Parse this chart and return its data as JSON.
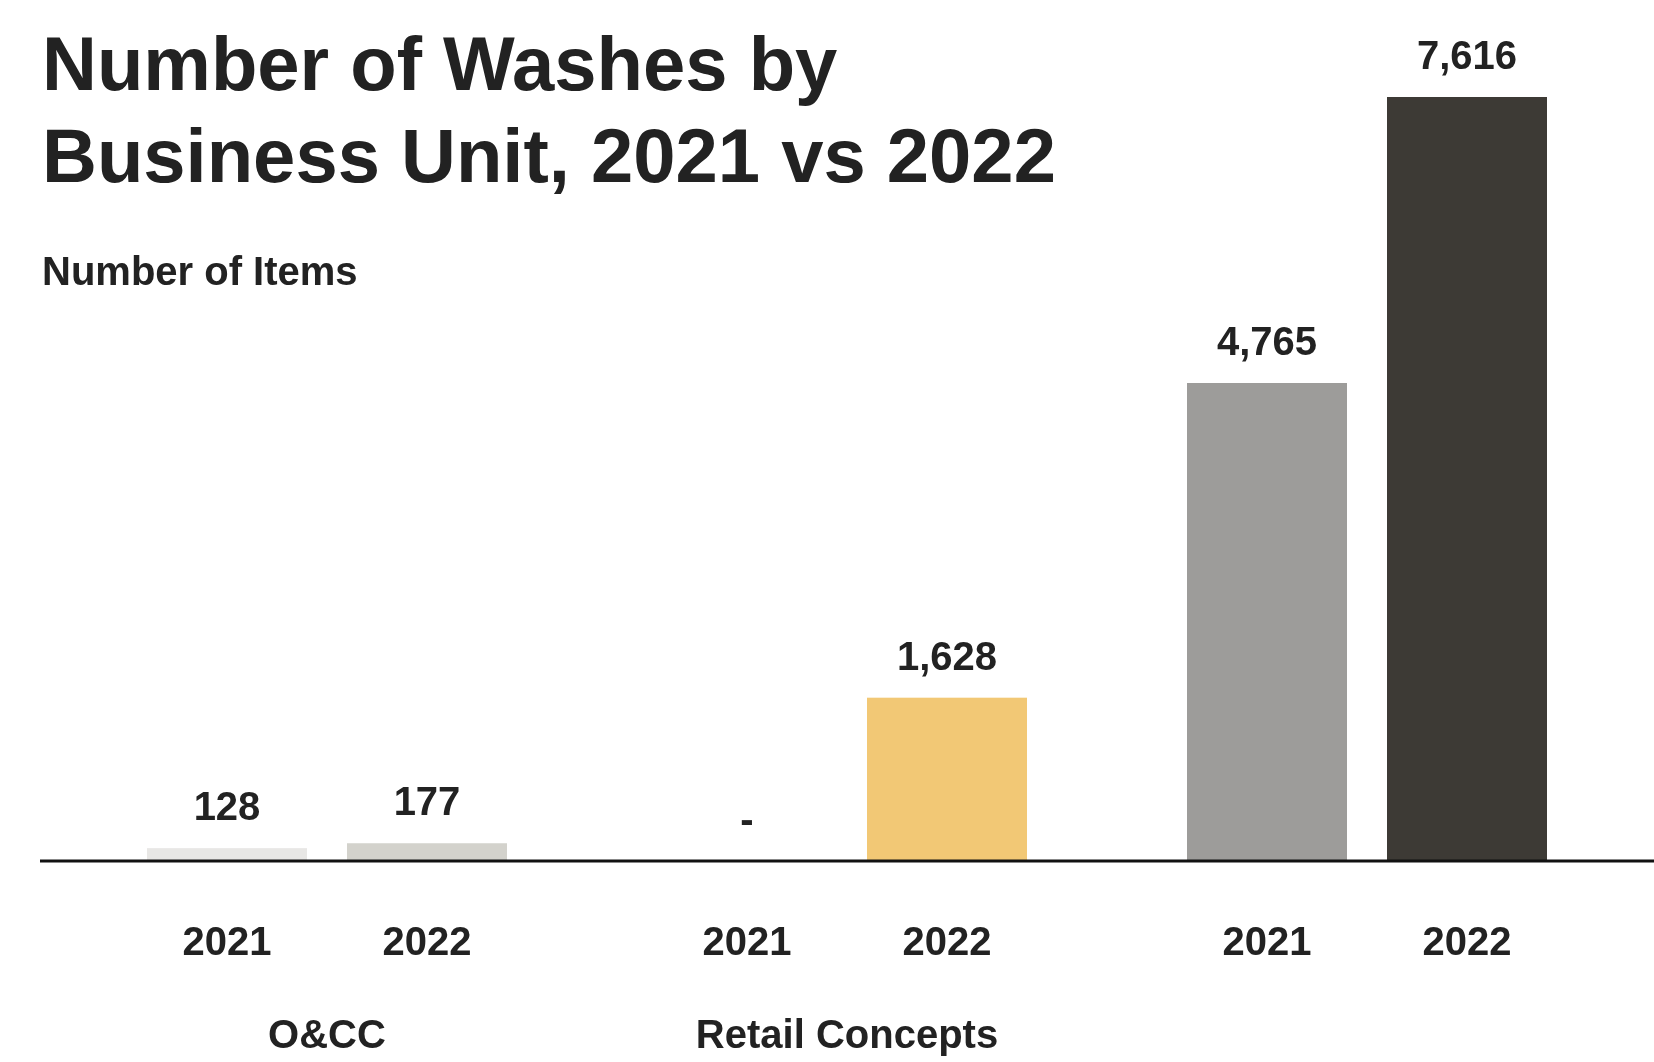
{
  "chart_data": {
    "type": "bar",
    "title": "Number of Washes by Business Unit, 2021 vs 2022",
    "ylabel": "Number of Items",
    "categories": [
      "2021",
      "2022",
      "2021",
      "2022",
      "2021",
      "2022"
    ],
    "values": [
      128,
      177,
      0,
      1628,
      4765,
      7616
    ],
    "colors": [
      "#e8e7e5",
      "#d3d2cc",
      "#e8e7e5",
      "#f2c875",
      "#9d9c9a",
      "#3d3a35"
    ],
    "value_labels": [
      "128",
      "177",
      "-",
      "1,628",
      "4,765",
      "7,616"
    ],
    "annotations": [
      "O&CC",
      "Retail Concepts"
    ]
  }
}
